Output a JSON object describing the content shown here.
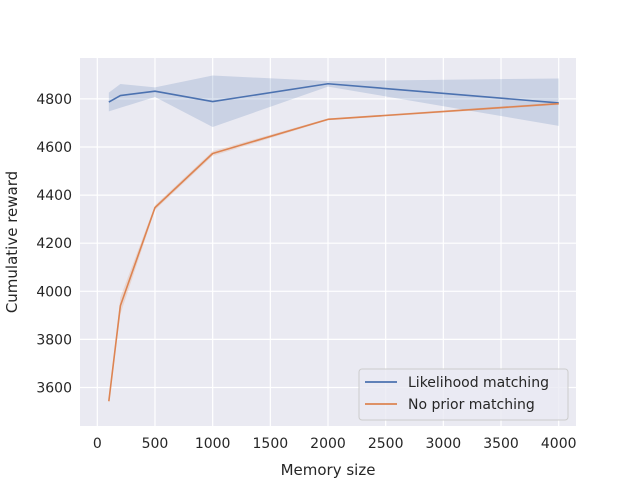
{
  "chart_data": {
    "type": "line",
    "xlabel": "Memory size",
    "ylabel": "Cumulative reward",
    "xlim": [
      -150,
      4150
    ],
    "ylim": [
      3440,
      4970
    ],
    "xticks": [
      0,
      500,
      1000,
      1500,
      2000,
      2500,
      3000,
      3500,
      4000
    ],
    "yticks": [
      3600,
      3800,
      4000,
      4200,
      4400,
      4600,
      4800
    ],
    "grid": true,
    "legend_position": "lower-right",
    "background": "#eaeaf2",
    "series": [
      {
        "name": "Likelihood matching",
        "color": "#4c72b0",
        "x": [
          100,
          200,
          500,
          1000,
          2000,
          4000
        ],
        "y": [
          4787,
          4814,
          4832,
          4789,
          4863,
          4783
        ],
        "lower": [
          4748,
          4763,
          4808,
          4683,
          4851,
          4688
        ],
        "upper": [
          4826,
          4862,
          4848,
          4897,
          4874,
          4885
        ]
      },
      {
        "name": "No prior matching",
        "color": "#dd8452",
        "x": [
          100,
          200,
          500,
          1000,
          2000,
          4000
        ],
        "y": [
          3543,
          3940,
          4348,
          4573,
          4715,
          4780
        ],
        "lower": [
          3540,
          3905,
          4338,
          4563,
          4711,
          4775
        ],
        "upper": [
          3546,
          3975,
          4358,
          4583,
          4719,
          4785
        ]
      }
    ]
  }
}
